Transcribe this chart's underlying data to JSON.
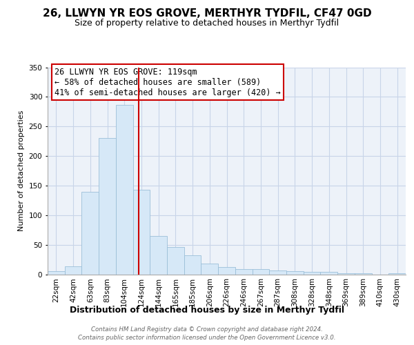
{
  "title": "26, LLWYN YR EOS GROVE, MERTHYR TYDFIL, CF47 0GD",
  "subtitle": "Size of property relative to detached houses in Merthyr Tydfil",
  "xlabel": "Distribution of detached houses by size in Merthyr Tydfil",
  "ylabel": "Number of detached properties",
  "categories": [
    "22sqm",
    "42sqm",
    "63sqm",
    "83sqm",
    "104sqm",
    "124sqm",
    "144sqm",
    "165sqm",
    "185sqm",
    "206sqm",
    "226sqm",
    "246sqm",
    "267sqm",
    "287sqm",
    "308sqm",
    "328sqm",
    "348sqm",
    "369sqm",
    "389sqm",
    "410sqm",
    "430sqm"
  ],
  "values": [
    5,
    14,
    140,
    230,
    287,
    143,
    65,
    46,
    32,
    18,
    12,
    9,
    9,
    6,
    5,
    4,
    4,
    2,
    2,
    0,
    2
  ],
  "bar_color": "#d6e8f7",
  "bar_edge_color": "#9bbfd8",
  "vline_x": 4.85,
  "vline_color": "#cc0000",
  "annotation_box_text": "26 LLWYN YR EOS GROVE: 119sqm\n← 58% of detached houses are smaller (589)\n41% of semi-detached houses are larger (420) →",
  "annotation_box_color": "#cc0000",
  "footnote_line1": "Contains HM Land Registry data © Crown copyright and database right 2024.",
  "footnote_line2": "Contains public sector information licensed under the Open Government Licence v3.0.",
  "ylim": [
    0,
    350
  ],
  "yticks": [
    0,
    50,
    100,
    150,
    200,
    250,
    300,
    350
  ],
  "bg_color": "#edf2f9",
  "grid_color": "#c8d4e8",
  "title_fontsize": 11,
  "subtitle_fontsize": 9,
  "ylabel_fontsize": 8,
  "xlabel_fontsize": 9,
  "tick_fontsize": 7.5,
  "ann_fontsize": 8.5
}
